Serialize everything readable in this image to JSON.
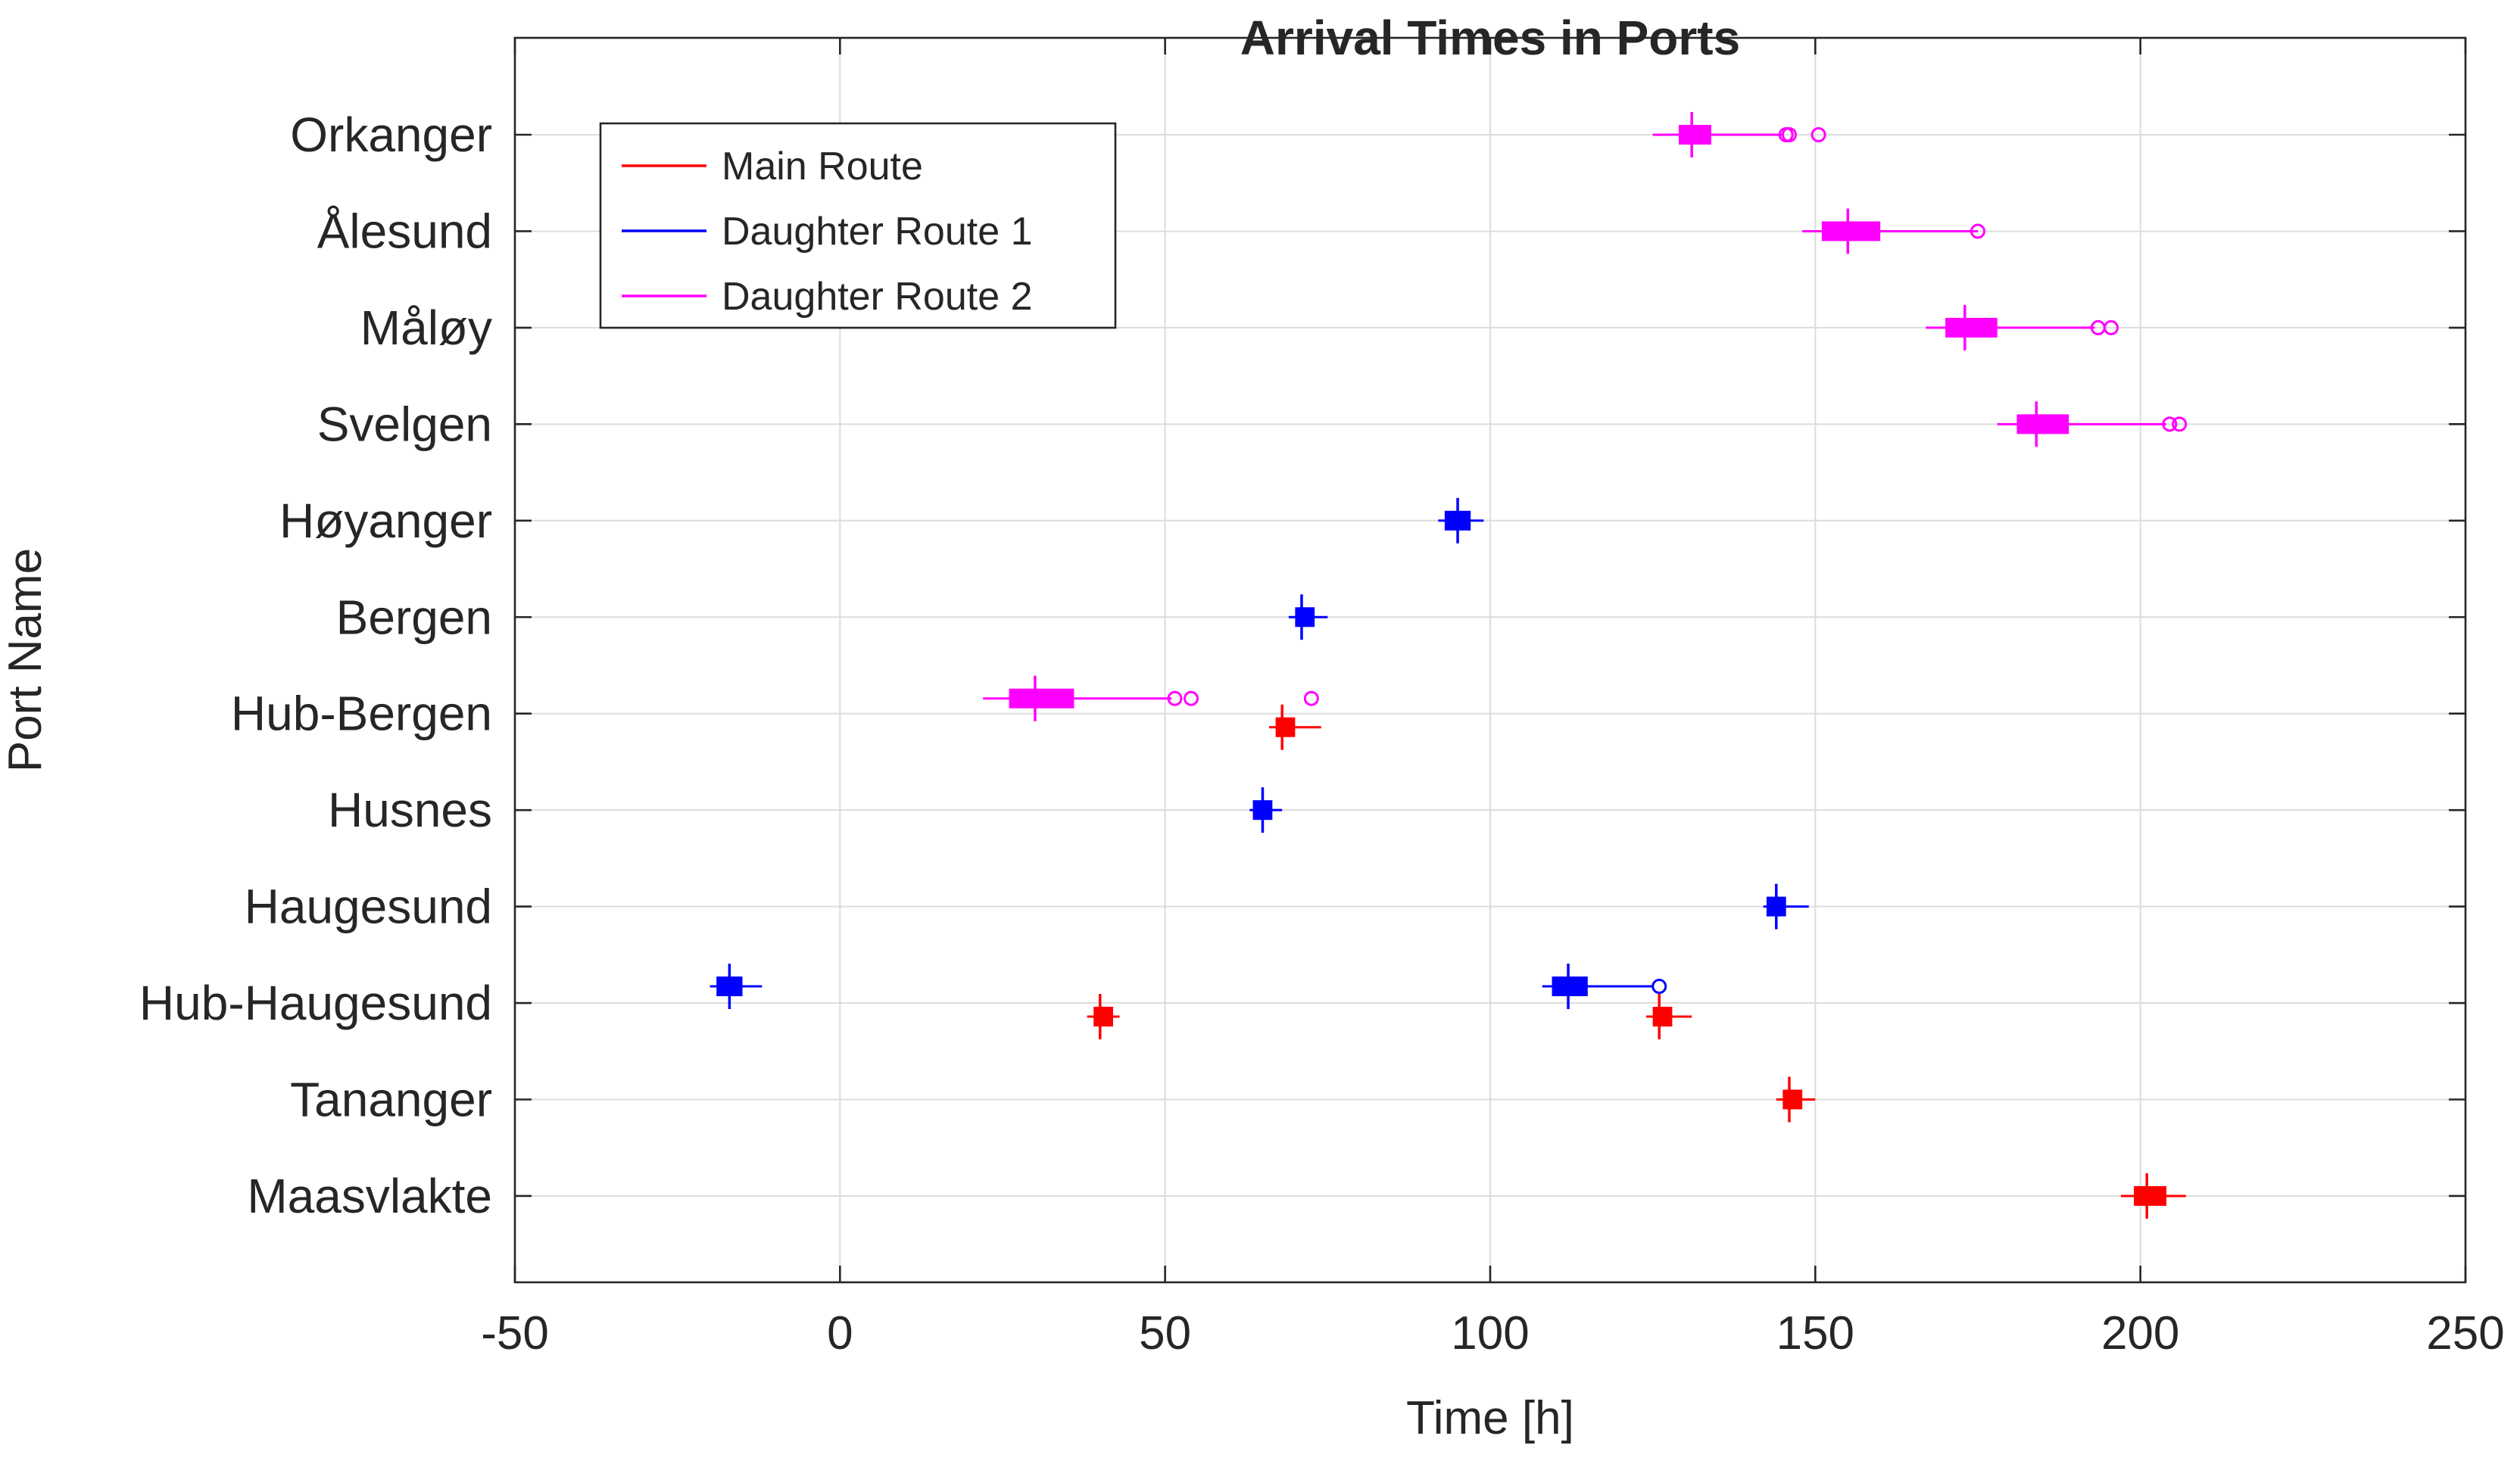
{
  "chart_data": {
    "type": "boxplot",
    "title": "Arrival Times in Ports",
    "xlabel": "Time [h]",
    "ylabel": "Port Name",
    "xlim": [
      -50,
      250
    ],
    "xticks": [
      -50,
      0,
      50,
      100,
      150,
      200,
      250
    ],
    "categories": [
      "Orkanger",
      "Ålesund",
      "Måløy",
      "Svelgen",
      "Høyanger",
      "Bergen",
      "Hub-Bergen",
      "Husnes",
      "Haugesund",
      "Hub-Haugesund",
      "Tananger",
      "Maasvlakte"
    ],
    "grid": true,
    "legend_position": "top-left",
    "series": [
      {
        "name": "Main Route",
        "color": "#ff0000",
        "boxes": [
          {
            "category": "Hub-Bergen",
            "whisker_low": 66,
            "q1": 67,
            "median": 68,
            "q3": 70,
            "whisker_high": 74,
            "outliers": []
          },
          {
            "category": "Hub-Haugesund",
            "whisker_low": 38,
            "q1": 39,
            "median": 40,
            "q3": 42,
            "whisker_high": 43,
            "outliers": []
          },
          {
            "category": "Hub-Haugesund",
            "whisker_low": 124,
            "q1": 125,
            "median": 126,
            "q3": 128,
            "whisker_high": 131,
            "outliers": []
          },
          {
            "category": "Tananger",
            "whisker_low": 144,
            "q1": 145,
            "median": 146,
            "q3": 148,
            "whisker_high": 150,
            "outliers": []
          },
          {
            "category": "Maasvlakte",
            "whisker_low": 197,
            "q1": 199,
            "median": 201,
            "q3": 204,
            "whisker_high": 207,
            "outliers": []
          }
        ]
      },
      {
        "name": "Daughter Route 1",
        "color": "#0000ff",
        "boxes": [
          {
            "category": "Høyanger",
            "whisker_low": 92,
            "q1": 93,
            "median": 95,
            "q3": 97,
            "whisker_high": 99,
            "outliers": []
          },
          {
            "category": "Bergen",
            "whisker_low": 69,
            "q1": 70,
            "median": 71,
            "q3": 73,
            "whisker_high": 75,
            "outliers": []
          },
          {
            "category": "Husnes",
            "whisker_low": 63,
            "q1": 63.5,
            "median": 65,
            "q3": 66.5,
            "whisker_high": 68,
            "outliers": []
          },
          {
            "category": "Haugesund",
            "whisker_low": 142,
            "q1": 142.5,
            "median": 144,
            "q3": 145.5,
            "whisker_high": 149,
            "outliers": []
          },
          {
            "category": "Hub-Haugesund",
            "whisker_low": -20,
            "q1": -19,
            "median": -17,
            "q3": -15,
            "whisker_high": -12,
            "outliers": []
          },
          {
            "category": "Hub-Haugesund",
            "whisker_low": 108,
            "q1": 109.5,
            "median": 112,
            "q3": 115,
            "whisker_high": 125,
            "outliers": [
              126
            ]
          }
        ]
      },
      {
        "name": "Daughter Route 2",
        "color": "#ff00ff",
        "boxes": [
          {
            "category": "Orkanger",
            "whisker_low": 125,
            "q1": 129,
            "median": 131,
            "q3": 134,
            "whisker_high": 145,
            "outliers": [
              145.5,
              146,
              150.5
            ]
          },
          {
            "category": "Ålesund",
            "whisker_low": 148,
            "q1": 151,
            "median": 155,
            "q3": 160,
            "whisker_high": 175,
            "outliers": [
              175
            ]
          },
          {
            "category": "Måløy",
            "whisker_low": 167,
            "q1": 170,
            "median": 173,
            "q3": 178,
            "whisker_high": 193,
            "outliers": [
              193.5,
              195.5
            ]
          },
          {
            "category": "Svelgen",
            "whisker_low": 178,
            "q1": 181,
            "median": 184,
            "q3": 189,
            "whisker_high": 204,
            "outliers": [
              204.5,
              206
            ]
          },
          {
            "category": "Hub-Bergen",
            "whisker_low": 22,
            "q1": 26,
            "median": 30,
            "q3": 36,
            "whisker_high": 51,
            "outliers": [
              51.5,
              54,
              72.5
            ]
          }
        ]
      }
    ]
  }
}
